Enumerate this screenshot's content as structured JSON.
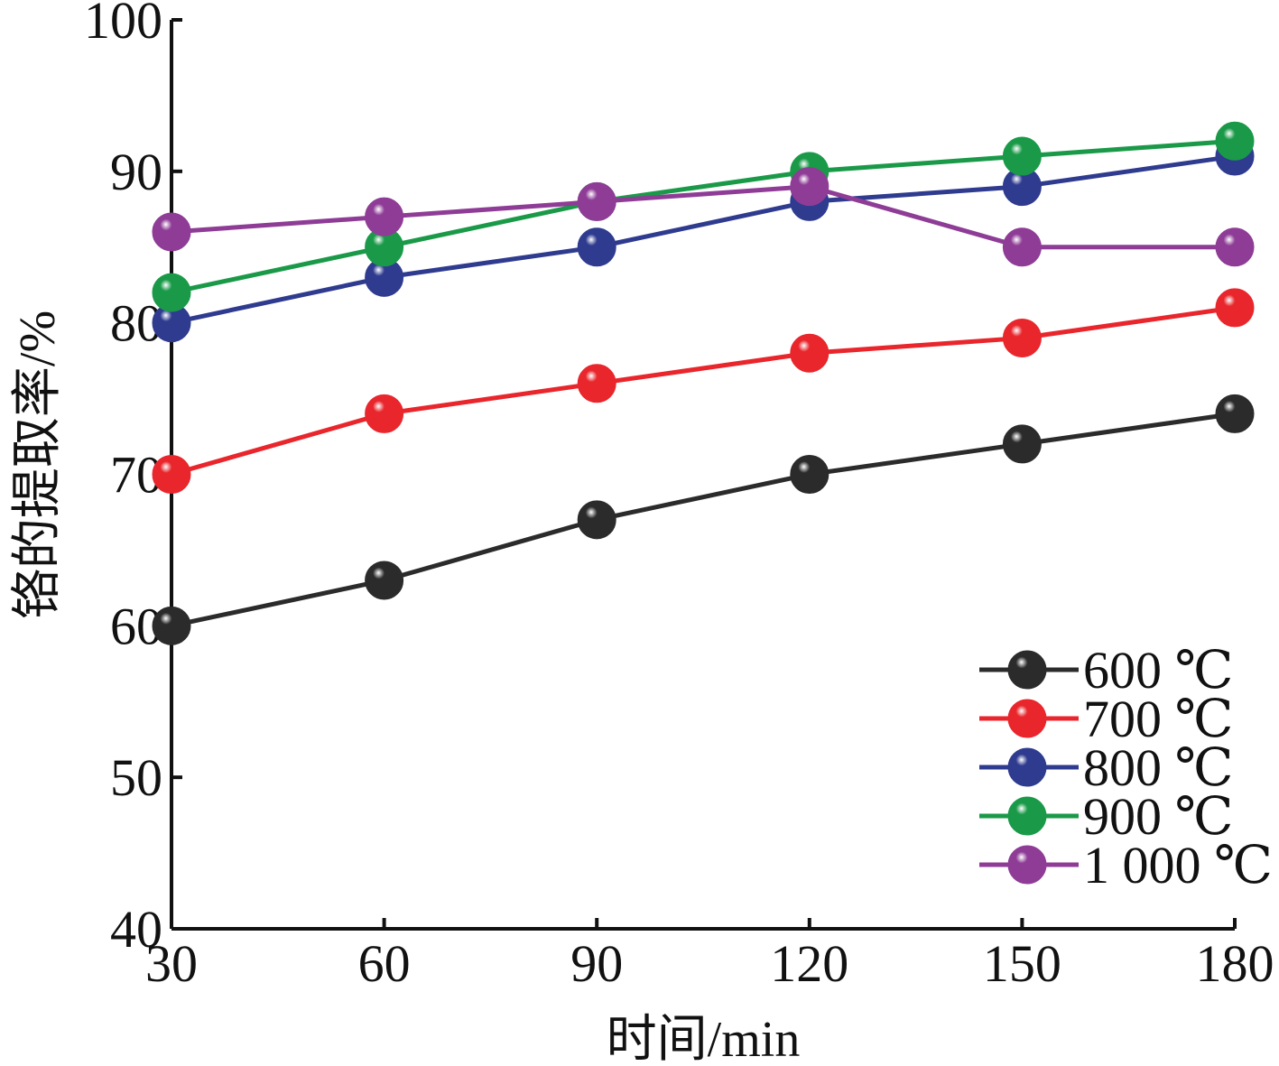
{
  "chart_data": {
    "type": "line",
    "title": "",
    "xlabel": "时间/min",
    "ylabel": "铬的提取率/%",
    "x": [
      30,
      60,
      90,
      120,
      150,
      180
    ],
    "xlim": [
      30,
      180
    ],
    "ylim": [
      40,
      100
    ],
    "xticks": [
      "30",
      "60",
      "90",
      "120",
      "150",
      "180"
    ],
    "yticks": [
      "40",
      "50",
      "60",
      "70",
      "80",
      "90",
      "100"
    ],
    "grid": false,
    "legend_position": "bottom-right",
    "series": [
      {
        "name": "600 ℃",
        "color": "#2b2b2b",
        "values": [
          60,
          63,
          67,
          70,
          72,
          74
        ]
      },
      {
        "name": "700 ℃",
        "color": "#e8262c",
        "values": [
          70,
          74,
          76,
          78,
          79,
          81
        ]
      },
      {
        "name": "800 ℃",
        "color": "#2e3b8f",
        "values": [
          80,
          83,
          85,
          88,
          89,
          91
        ]
      },
      {
        "name": "900 ℃",
        "color": "#1a9a48",
        "values": [
          82,
          85,
          88,
          90,
          91,
          92
        ]
      },
      {
        "name": "1 000 ℃",
        "color": "#8e3c96",
        "values": [
          86,
          87,
          88,
          89,
          85,
          85
        ]
      }
    ]
  }
}
